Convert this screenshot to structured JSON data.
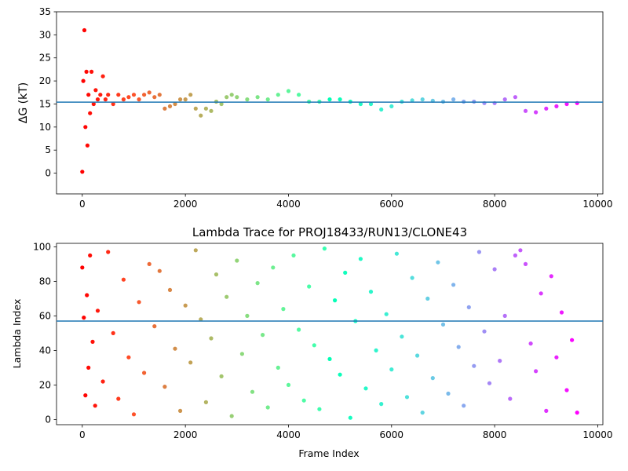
{
  "chart_data": [
    {
      "type": "scatter",
      "title": "",
      "xlabel": "",
      "ylabel": "ΔG (kT)",
      "xlim": [
        -500,
        10100
      ],
      "ylim": [
        -4.5,
        35
      ],
      "xticks": [
        0,
        2000,
        4000,
        6000,
        8000,
        10000
      ],
      "yticks": [
        0,
        5,
        10,
        15,
        20,
        25,
        30,
        35
      ],
      "grid": false,
      "colormap": "rainbow (early frames red/orange, late frames violet)",
      "hline": 15.4,
      "hline_color": "#1f77b4",
      "series": [
        {
          "x": [
            0,
            20,
            40,
            60,
            80,
            100,
            120,
            150,
            180,
            220,
            260,
            300,
            350,
            400,
            450,
            500,
            600,
            700,
            800,
            900,
            1000,
            1100,
            1200,
            1300,
            1400,
            1500,
            1600,
            1700,
            1800,
            1900,
            2000,
            2100,
            2200,
            2300,
            2400,
            2500,
            2600,
            2700,
            2800,
            2900,
            3000,
            3200,
            3400,
            3600,
            3800,
            4000,
            4200,
            4400,
            4600,
            4800,
            5000,
            5200,
            5400,
            5600,
            5800,
            6000,
            6200,
            6400,
            6600,
            6800,
            7000,
            7200,
            7400,
            7600,
            7800,
            8000,
            8200,
            8400,
            8600,
            8800,
            9000,
            9200,
            9400,
            9600
          ],
          "y": [
            0.3,
            20,
            31,
            10,
            22,
            6,
            17,
            13,
            22,
            15,
            18,
            16,
            17,
            21,
            16,
            17,
            15,
            17,
            16,
            16.5,
            17,
            16,
            17,
            17.5,
            16.5,
            17,
            14,
            14.5,
            15,
            16,
            16,
            17,
            14,
            12.5,
            14,
            13.5,
            15.5,
            15,
            16.5,
            17,
            16.5,
            16,
            16.5,
            16,
            17,
            17.8,
            17,
            15.5,
            15.5,
            16,
            16,
            15.5,
            15,
            15,
            13.8,
            14.5,
            15.5,
            15.8,
            16,
            15.7,
            15.5,
            16,
            15.5,
            15.5,
            15.2,
            15.2,
            16,
            16.5,
            13.5,
            13.2,
            14,
            14.5,
            15,
            15.2
          ]
        }
      ]
    },
    {
      "type": "scatter",
      "title": "Lambda Trace for PROJ18433/RUN13/CLONE43",
      "xlabel": "Frame Index",
      "ylabel": "Lambda Index",
      "xlim": [
        -500,
        10100
      ],
      "ylim": [
        -3,
        102
      ],
      "xticks": [
        0,
        2000,
        4000,
        6000,
        8000,
        10000
      ],
      "yticks": [
        0,
        20,
        40,
        60,
        80,
        100
      ],
      "grid": false,
      "colormap": "rainbow (early frames red/orange, late frames violet)",
      "hline": 57,
      "hline_color": "#1f77b4",
      "series": [
        {
          "x": [
            0,
            30,
            60,
            90,
            120,
            150,
            200,
            250,
            300,
            400,
            500,
            600,
            700,
            800,
            900,
            1000,
            1100,
            1200,
            1300,
            1400,
            1500,
            1600,
            1700,
            1800,
            1900,
            2000,
            2100,
            2200,
            2300,
            2400,
            2500,
            2600,
            2700,
            2800,
            2900,
            3000,
            3100,
            3200,
            3300,
            3400,
            3500,
            3600,
            3700,
            3800,
            3900,
            4000,
            4100,
            4200,
            4300,
            4400,
            4500,
            4600,
            4700,
            4800,
            4900,
            5000,
            5100,
            5200,
            5300,
            5400,
            5500,
            5600,
            5700,
            5800,
            5900,
            6000,
            6100,
            6200,
            6300,
            6400,
            6500,
            6600,
            6700,
            6800,
            6900,
            7000,
            7100,
            7200,
            7300,
            7400,
            7500,
            7600,
            7700,
            7800,
            7900,
            8000,
            8100,
            8200,
            8300,
            8400,
            8500,
            8600,
            8700,
            8800,
            8900,
            9000,
            9100,
            9200,
            9300,
            9400,
            9500,
            9600
          ],
          "y": [
            88,
            59,
            14,
            72,
            30,
            95,
            45,
            8,
            63,
            22,
            97,
            50,
            12,
            81,
            36,
            3,
            68,
            27,
            90,
            54,
            86,
            19,
            75,
            41,
            5,
            66,
            33,
            98,
            58,
            10,
            47,
            84,
            25,
            71,
            2,
            92,
            38,
            60,
            16,
            79,
            49,
            7,
            88,
            30,
            64,
            20,
            95,
            52,
            11,
            77,
            43,
            6,
            99,
            35,
            69,
            26,
            85,
            1,
            57,
            93,
            18,
            74,
            40,
            9,
            61,
            29,
            96,
            48,
            13,
            82,
            37,
            4,
            70,
            24,
            91,
            55,
            15,
            78,
            42,
            8,
            65,
            31,
            97,
            51,
            21,
            87,
            34,
            60,
            12,
            95,
            98,
            90,
            44,
            28,
            73,
            5,
            83,
            36,
            62,
            17,
            46,
            4
          ]
        }
      ]
    }
  ]
}
